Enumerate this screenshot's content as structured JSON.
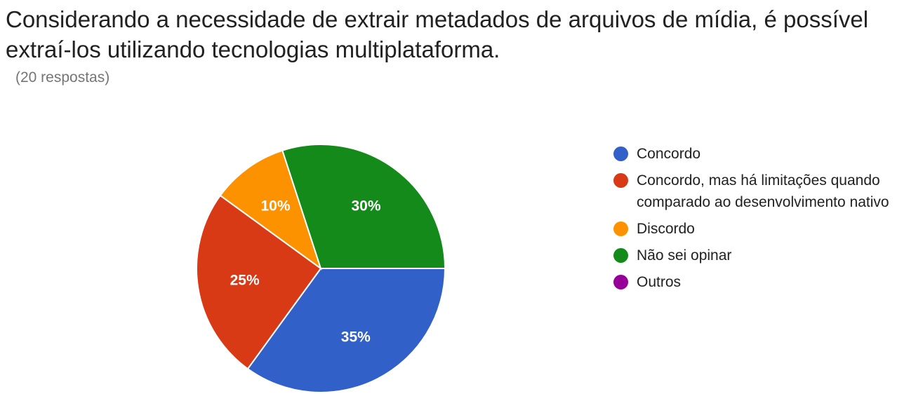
{
  "title": "Considerando a necessidade de extrair metadados de arquivos de mídia, é possível extraí-los utilizando tecnologias multiplataforma.",
  "subtitle": "(20 respostas)",
  "chart_data": {
    "type": "pie",
    "title": "Considerando a necessidade de extrair metadados de arquivos de mídia, é possível extraí-los utilizando tecnologias multiplataforma.",
    "subtitle": "(20 respostas)",
    "legend_position": "right",
    "slices": [
      {
        "label": "Concordo",
        "value": 35,
        "display": "35%",
        "color": "#3060c8"
      },
      {
        "label": "Concordo, mas há limitações quando comparado ao desenvolvimento nativo",
        "value": 25,
        "display": "25%",
        "color": "#d93a16"
      },
      {
        "label": "Discordo",
        "value": 10,
        "display": "10%",
        "color": "#fd9200"
      },
      {
        "label": "Não sei opinar",
        "value": 30,
        "display": "30%",
        "color": "#138a1a"
      },
      {
        "label": "Outros",
        "value": 0,
        "display": "",
        "color": "#960097"
      }
    ]
  }
}
